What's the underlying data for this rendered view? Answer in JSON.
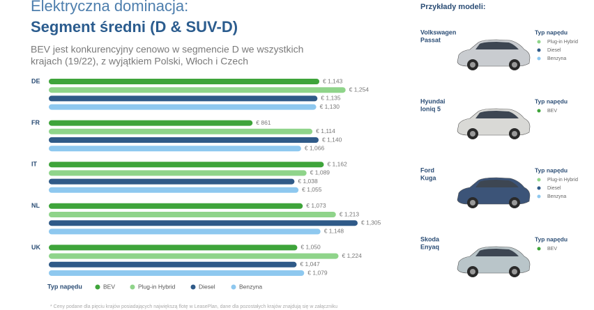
{
  "chart_data": {
    "type": "bar",
    "orientation": "horizontal",
    "title": "Elektryczna dominacja:",
    "subtitle_title": "Segment średni (D & SUV-D)",
    "subtitle": [
      "BEV jest konkurencyjny cenowo w segmencie D we wszystkich",
      "krajach (19/22), z wyjątkiem Polski, Włoch i Czech"
    ],
    "categories": [
      "DE",
      "FR",
      "IT",
      "NL",
      "UK"
    ],
    "legend_title": "Typ napędu",
    "series": [
      {
        "name": "BEV",
        "color": "#3ea43a",
        "values": [
          1143,
          861,
          1162,
          1073,
          1050
        ],
        "value_labels": [
          "€ 1,143",
          "€ 861",
          "€ 1,162",
          "€ 1,073",
          "€ 1,050"
        ]
      },
      {
        "name": "Plug-in Hybrid",
        "color": "#8fd48a",
        "values": [
          1254,
          1114,
          1089,
          1213,
          1224
        ],
        "value_labels": [
          "€ 1,254",
          "€ 1,114",
          "€ 1,089",
          "€ 1,213",
          "€ 1,224"
        ]
      },
      {
        "name": "Diesel",
        "color": "#2f5a88",
        "values": [
          1135,
          1140,
          1038,
          1305,
          1047
        ],
        "value_labels": [
          "€ 1,135",
          "€ 1,140",
          "€ 1,038",
          "€ 1,305",
          "€ 1,047"
        ]
      },
      {
        "name": "Benzyna",
        "color": "#8ec8ef",
        "values": [
          1130,
          1066,
          1055,
          1148,
          1079
        ],
        "value_labels": [
          "€ 1,130",
          "€ 1,066",
          "€ 1,055",
          "€ 1,148",
          "€ 1,079"
        ]
      }
    ],
    "footnote": "* Ceny podane dla pięciu krajów posiadających największą flotę w LeasePlan, dane dla pozostałych krajów znajdują się w załączniku"
  },
  "panel": {
    "title": "Przykłady modeli:",
    "models": [
      {
        "name": [
          "Volkswagen",
          "Passat"
        ],
        "drives": [
          "Plug-in Hybrid",
          "Diesel",
          "Benzyna"
        ]
      },
      {
        "name": [
          "Hyundai",
          "Ioniq 5"
        ],
        "drives": [
          "BEV"
        ]
      },
      {
        "name": [
          "Ford",
          "Kuga"
        ],
        "drives": [
          "Plug-in Hybrid",
          "Diesel",
          "Benzyna"
        ]
      },
      {
        "name": [
          "Skoda",
          "Enyaq"
        ],
        "drives": [
          "BEV"
        ]
      }
    ]
  }
}
